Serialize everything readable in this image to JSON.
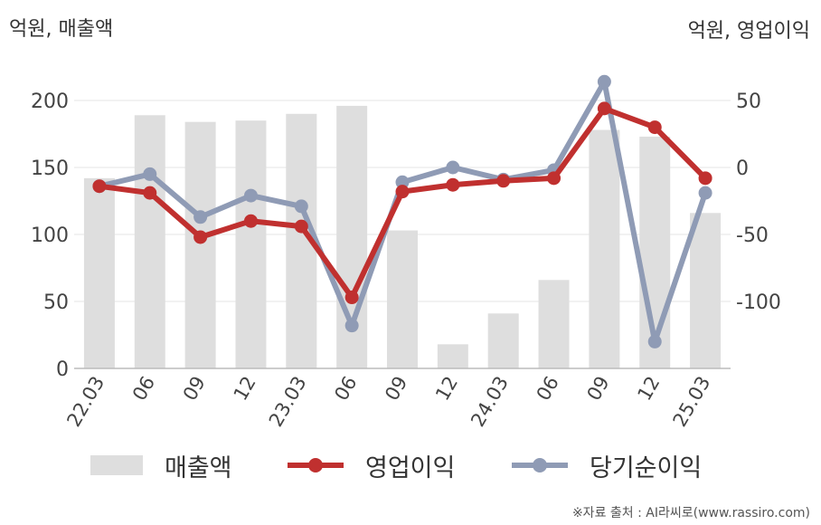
{
  "chart_data": {
    "type": "bar+line",
    "left_axis_title": "억원, 매출액",
    "right_axis_title": "억원, 영업이익",
    "categories": [
      "22.03",
      "06",
      "09",
      "12",
      "23.03",
      "06",
      "09",
      "12",
      "24.03",
      "06",
      "09",
      "12",
      "25.03"
    ],
    "left_axis": {
      "ylim": [
        0,
        225
      ],
      "ticks": [
        0,
        50,
        100,
        150,
        200
      ]
    },
    "right_axis": {
      "ylim": [
        -150,
        75
      ],
      "ticks": [
        -100,
        -50,
        0,
        50
      ]
    },
    "series": [
      {
        "name": "매출액",
        "type": "bar",
        "axis": "left",
        "color": "#dedede",
        "values": [
          142,
          189,
          184,
          185,
          190,
          196,
          103,
          18,
          41,
          66,
          178,
          173,
          116
        ]
      },
      {
        "name": "영업이익",
        "type": "line",
        "axis": "right",
        "color": "#c0302f",
        "values": [
          -14,
          -19,
          -52,
          -40,
          -44,
          -97,
          -18,
          -13,
          -10,
          -8,
          44,
          30,
          -8
        ]
      },
      {
        "name": "당기순이익",
        "type": "line",
        "axis": "right",
        "color": "#8f9bb5",
        "values": [
          -14,
          -5,
          -37,
          -21,
          -29,
          -118,
          -11,
          0,
          -9,
          -2,
          64,
          -130,
          -19
        ]
      }
    ],
    "grid": true,
    "legend_position": "bottom"
  },
  "source_text": "※자료 출처 : AI라씨로(www.rassiro.com)"
}
